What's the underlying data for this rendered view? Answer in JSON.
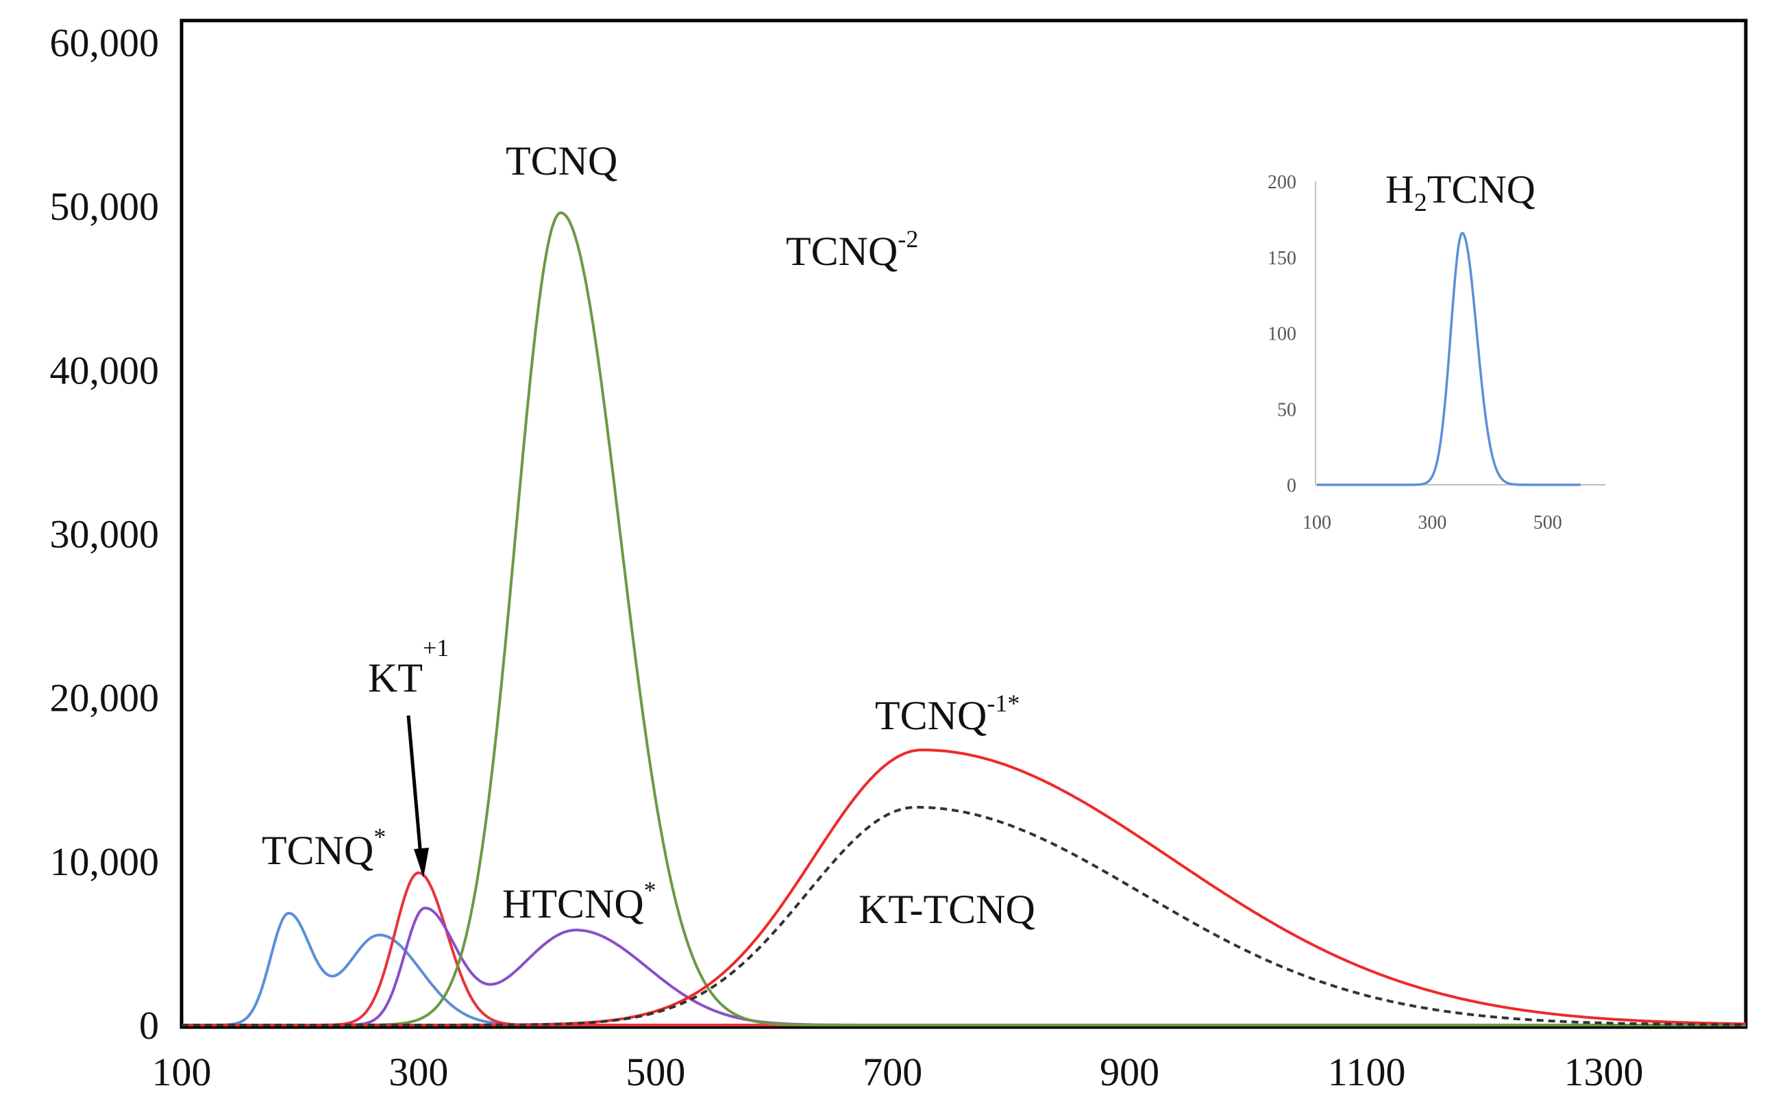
{
  "chart_data": [
    {
      "type": "line",
      "title": "",
      "xlabel": "",
      "ylabel": "",
      "xlim": [
        100,
        1420
      ],
      "ylim": [
        0,
        60000
      ],
      "grid": false,
      "x_ticks": [
        "100",
        "300",
        "500",
        "700",
        "900",
        "1100",
        "1300"
      ],
      "x_tick_values": [
        100,
        300,
        500,
        700,
        900,
        1100,
        1300
      ],
      "y_ticks": [
        "0",
        "10,000",
        "20,000",
        "30,000",
        "40,000",
        "50,000",
        "60,000"
      ],
      "y_tick_values": [
        0,
        10000,
        20000,
        30000,
        40000,
        50000,
        60000
      ],
      "series": [
        {
          "name": "TCNQ*",
          "color": "#5b8fd9",
          "style": "solid",
          "components": [
            {
              "center": 190,
              "amplitude": 6700,
              "width_left": 15,
              "width_right": 19
            },
            {
              "center": 267,
              "amplitude": 5500,
              "width_left": 28,
              "width_right": 35
            }
          ]
        },
        {
          "name": "KT+1",
          "color": "#e8333a",
          "style": "solid",
          "components": [
            {
              "center": 300,
              "amplitude": 9300,
              "width_left": 20,
              "width_right": 24
            }
          ]
        },
        {
          "name": "HTCNQ*",
          "color": "#8a4fc8",
          "style": "solid",
          "components": [
            {
              "center": 305,
              "amplitude": 7000,
              "width_left": 17,
              "width_right": 26
            },
            {
              "center": 433,
              "amplitude": 5800,
              "width_left": 47,
              "width_right": 60
            }
          ]
        },
        {
          "name": "TCNQ",
          "color": "#6a9a45",
          "style": "solid",
          "components": [
            {
              "center": 420,
              "amplitude": 49600,
              "width_left": 38,
              "width_right": 50
            }
          ]
        },
        {
          "name": "TCNQ-1*",
          "color": "#ee2a2a",
          "style": "solid",
          "components": [
            {
              "center": 725,
              "amplitude": 16800,
              "width_left": 92,
              "width_right": 210
            }
          ]
        },
        {
          "name": "KT-TCNQ",
          "color": "#333333",
          "style": "dashed",
          "components": [
            {
              "center": 720,
              "amplitude": 13300,
              "width_left": 92,
              "width_right": 190
            }
          ]
        }
      ],
      "annotations": [
        {
          "text": "TCNQ",
          "sup": "",
          "near_x": 420
        },
        {
          "text": "TCNQ",
          "sup": "-2",
          "near_x": 700
        },
        {
          "text": "KT",
          "sup": "+1",
          "near_x": 300,
          "arrow_to": [
            300,
            9000
          ]
        },
        {
          "text": "TCNQ",
          "sup": "-1*",
          "near_x": 725
        },
        {
          "text": "TCNQ",
          "sup": "*",
          "near_x": 190
        },
        {
          "text": "HTCNQ",
          "sup": "*",
          "near_x": 440
        },
        {
          "text": "KT-TCNQ",
          "sup": "",
          "near_x": 740
        }
      ]
    },
    {
      "type": "line",
      "role": "inset",
      "placement": "top-right",
      "title": "H2TCNQ",
      "xlim": [
        100,
        600
      ],
      "ylim": [
        0,
        200
      ],
      "grid": false,
      "x_ticks": [
        "100",
        "300",
        "500"
      ],
      "x_tick_values": [
        100,
        300,
        500
      ],
      "y_ticks": [
        "0",
        "50",
        "100",
        "150",
        "200"
      ],
      "y_tick_values": [
        0,
        50,
        100,
        150,
        200
      ],
      "series": [
        {
          "name": "H2TCNQ",
          "color": "#5b8fd9",
          "style": "solid",
          "components": [
            {
              "center": 352,
              "amplitude": 166,
              "width_left": 20,
              "width_right": 25
            }
          ]
        }
      ]
    }
  ]
}
